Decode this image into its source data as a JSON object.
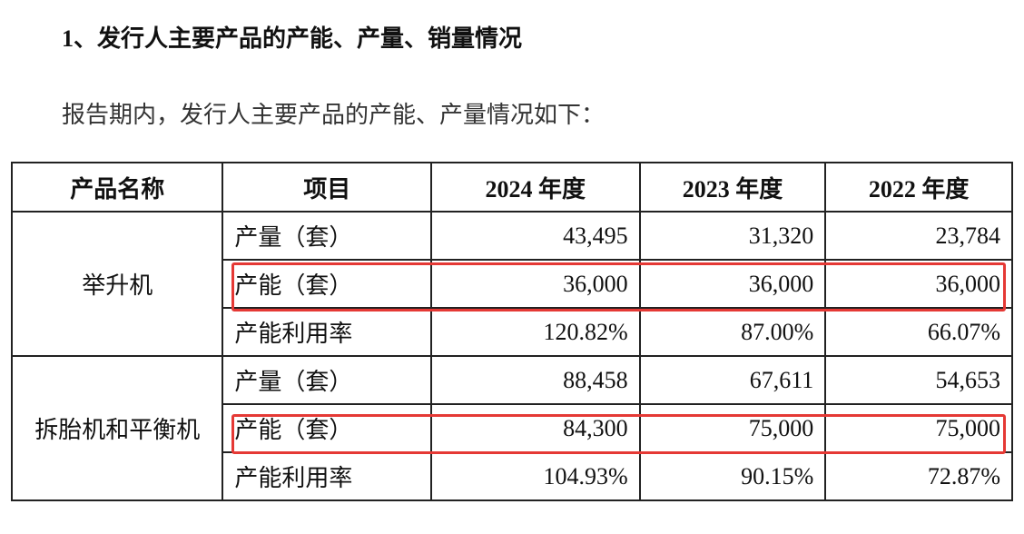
{
  "heading": "1、发行人主要产品的产能、产量、销量情况",
  "intro": "报告期内，发行人主要产品的产能、产量情况如下：",
  "table": {
    "header": [
      "产品名称",
      "项目",
      "2024 年度",
      "2023 年度",
      "2022 年度"
    ],
    "groups": [
      {
        "name": "举升机",
        "rows": [
          {
            "item": "产量（套）",
            "values": [
              "43,495",
              "31,320",
              "23,784"
            ]
          },
          {
            "item": "产能（套）",
            "values": [
              "36,000",
              "36,000",
              "36,000"
            ]
          },
          {
            "item": "产能利用率",
            "values": [
              "120.82%",
              "87.00%",
              "66.07%"
            ]
          }
        ]
      },
      {
        "name": "拆胎机和平衡机",
        "rows": [
          {
            "item": "产量（套）",
            "values": [
              "88,458",
              "67,611",
              "54,653"
            ]
          },
          {
            "item": "产能（套）",
            "values": [
              "84,300",
              "75,000",
              "75,000"
            ]
          },
          {
            "item": "产能利用率",
            "values": [
              "104.93%",
              "90.15%",
              "72.87%"
            ]
          }
        ]
      }
    ]
  }
}
